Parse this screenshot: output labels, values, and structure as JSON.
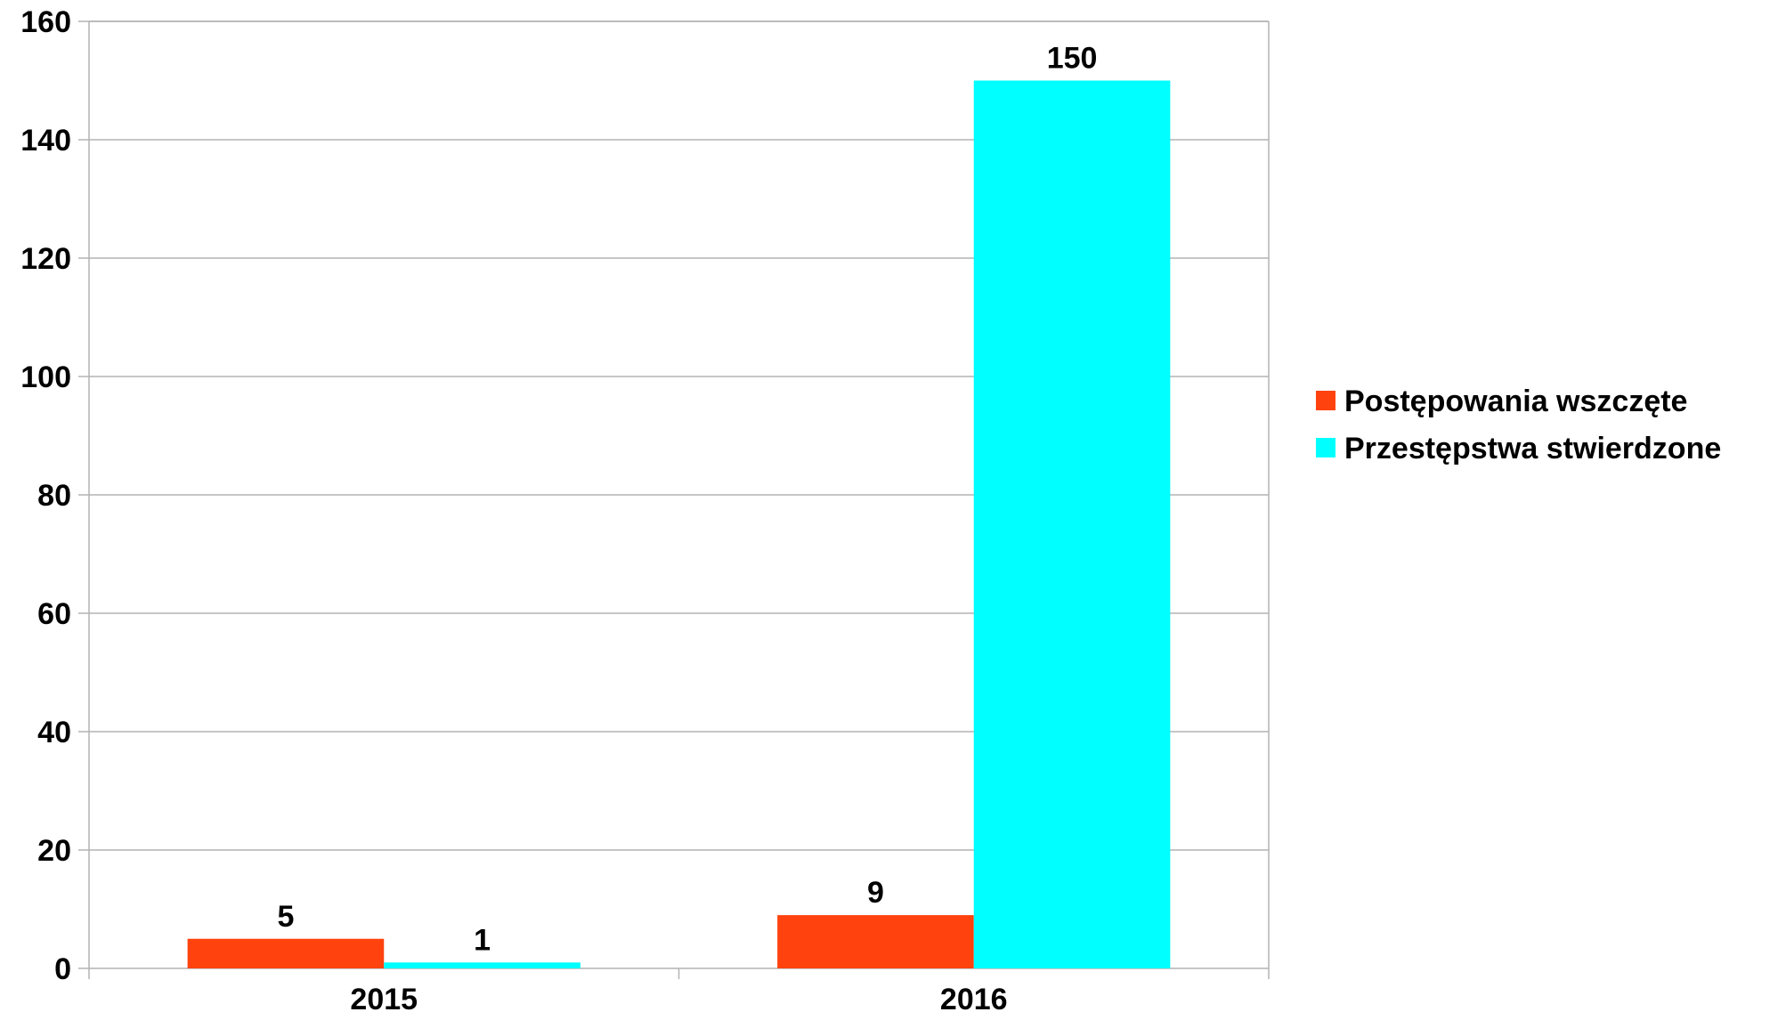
{
  "chart_data": {
    "type": "bar",
    "categories": [
      "2015",
      "2016"
    ],
    "series": [
      {
        "name": "Postępowania wszczęte",
        "values": [
          5,
          9
        ],
        "color": "#ff420e"
      },
      {
        "name": "Przestępstwa stwierdzone",
        "values": [
          1,
          150
        ],
        "color": "#00ffff"
      }
    ],
    "title": "",
    "xlabel": "",
    "ylabel": "",
    "ylim": [
      0,
      160
    ],
    "yticks": [
      0,
      20,
      40,
      60,
      80,
      100,
      120,
      140,
      160
    ],
    "grid": true,
    "legend": "right",
    "data_labels": true
  }
}
